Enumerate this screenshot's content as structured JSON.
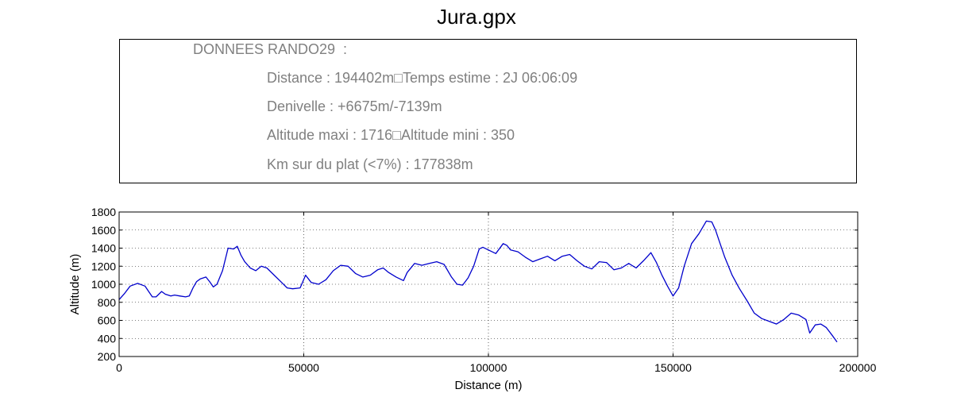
{
  "title": "Jura.gpx",
  "info": {
    "header": "DONNEES RANDO29  :",
    "line1": "Distance : 194402m□Temps estime : 2J 06:06:09",
    "line2": "Denivelle : +6675m/-7139m",
    "line3": "Altitude maxi : 1716□Altitude mini : 350",
    "line4": "Km sur du plat (<7%) : 177838m"
  },
  "chart_data": {
    "type": "line",
    "xlabel": "Distance (m)",
    "ylabel": "Altitude (m)",
    "xlim": [
      0,
      200000
    ],
    "ylim": [
      200,
      1800
    ],
    "xticks": [
      0,
      50000,
      100000,
      150000,
      200000
    ],
    "yticks": [
      200,
      400,
      600,
      800,
      1000,
      1200,
      1400,
      1600,
      1800
    ],
    "grid": true,
    "line_color": "#0000cc",
    "series": [
      {
        "x": [
          0,
          1500,
          3000,
          5000,
          7000,
          8000,
          9000,
          10000,
          11500,
          12500,
          14000,
          15000,
          16500,
          18000,
          19000,
          20000,
          21000,
          22000,
          23500,
          24500,
          25500,
          26500,
          28000,
          29500,
          31000,
          32000,
          33000,
          34000,
          35500,
          37000,
          38500,
          40000,
          42000,
          44000,
          45500,
          47000,
          49000,
          50500,
          52000,
          54000,
          56000,
          58000,
          60000,
          62000,
          64000,
          66000,
          68000,
          70000,
          71500,
          73000,
          75000,
          77000,
          78000,
          80000,
          82000,
          84000,
          86000,
          88000,
          90000,
          91500,
          93000,
          94500,
          96000,
          97500,
          98500,
          100000,
          102000,
          104000,
          105000,
          106000,
          108000,
          110000,
          112000,
          114000,
          116000,
          118000,
          120000,
          122000,
          124000,
          126000,
          128000,
          130000,
          132000,
          134000,
          136000,
          138000,
          140000,
          142000,
          144000,
          145500,
          147000,
          148500,
          150000,
          151500,
          153000,
          155000,
          157000,
          159000,
          160500,
          161500,
          162500,
          164000,
          166000,
          168000,
          170000,
          172000,
          174000,
          176000,
          178000,
          180000,
          182000,
          184000,
          186000,
          187000,
          188500,
          190000,
          191500,
          193000,
          194402
        ],
        "y": [
          830,
          900,
          980,
          1010,
          980,
          920,
          860,
          860,
          920,
          890,
          870,
          880,
          870,
          860,
          870,
          960,
          1030,
          1060,
          1080,
          1030,
          970,
          1000,
          1150,
          1400,
          1390,
          1420,
          1320,
          1250,
          1180,
          1150,
          1200,
          1180,
          1100,
          1020,
          960,
          950,
          960,
          1100,
          1020,
          1000,
          1050,
          1150,
          1210,
          1200,
          1120,
          1080,
          1100,
          1160,
          1180,
          1130,
          1080,
          1040,
          1130,
          1230,
          1210,
          1230,
          1250,
          1220,
          1080,
          1000,
          990,
          1070,
          1200,
          1390,
          1410,
          1380,
          1340,
          1450,
          1430,
          1380,
          1360,
          1300,
          1250,
          1280,
          1310,
          1260,
          1310,
          1330,
          1260,
          1200,
          1170,
          1250,
          1240,
          1160,
          1180,
          1230,
          1180,
          1260,
          1350,
          1240,
          1100,
          980,
          870,
          960,
          1200,
          1450,
          1560,
          1700,
          1690,
          1600,
          1480,
          1300,
          1100,
          950,
          820,
          680,
          620,
          590,
          560,
          610,
          680,
          660,
          610,
          460,
          550,
          560,
          520,
          440,
          360
        ]
      }
    ]
  }
}
